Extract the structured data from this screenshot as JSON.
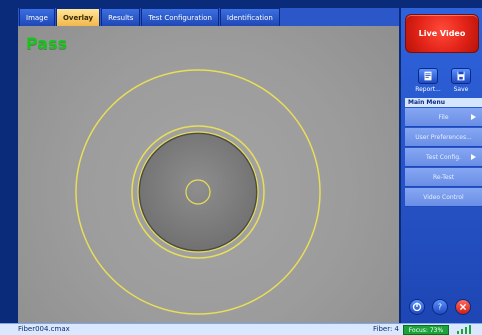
{
  "tabs": [
    {
      "label": "Image"
    },
    {
      "label": "Overlay"
    },
    {
      "label": "Results"
    },
    {
      "label": "Test Configuration"
    },
    {
      "label": "Identification"
    }
  ],
  "active_tab": "Overlay",
  "result": {
    "label": "Pass",
    "color": "#19c21e"
  },
  "right_panel": {
    "live_video_label": "Live Video",
    "report_label": "Report...",
    "save_label": "Save",
    "main_menu_title": "Main Menu",
    "menu_items": [
      {
        "label": "File"
      },
      {
        "label": "User Preferences..."
      },
      {
        "label": "Test Config."
      },
      {
        "label": "Re-Test"
      },
      {
        "label": "Video Control"
      }
    ]
  },
  "status_bar": {
    "file": "Fiber004.cmax",
    "fiber": "Fiber: 4",
    "focus": "Focus: 73%"
  },
  "colors": {
    "overlay_ring": "#e8de57",
    "accent_blue": "#2b57c8",
    "live_video_red": "#e32418"
  }
}
